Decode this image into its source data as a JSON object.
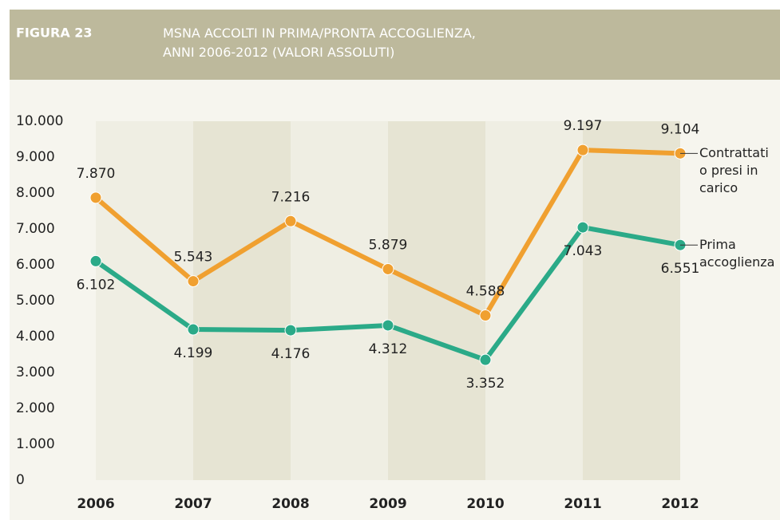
{
  "figure_label": "FIGURA 23",
  "chart_data": {
    "type": "line",
    "title": "MSNA ACCOLTI IN PRIMA/PRONTA ACCOGLIENZA, ANNI 2006-2012 (VALORI ASSOLUTI)",
    "categories": [
      "2006",
      "2007",
      "2008",
      "2009",
      "2010",
      "2011",
      "2012"
    ],
    "ylim": [
      0,
      10000
    ],
    "yticks": [
      0,
      {
        "value": 1000,
        "label": "1.000"
      },
      {
        "value": 2000,
        "label": "2.000"
      },
      {
        "value": 3000,
        "label": "3.000"
      },
      {
        "value": 4000,
        "label": "4.000"
      },
      {
        "value": 5000,
        "label": "5.000"
      },
      {
        "value": 6000,
        "label": "6.000"
      },
      {
        "value": 7000,
        "label": "7.000"
      },
      {
        "value": 8000,
        "label": "8.000"
      },
      {
        "value": 9000,
        "label": "9.000"
      },
      {
        "value": 10000,
        "label": "10.000"
      }
    ],
    "series": [
      {
        "name": "Contrattati o presi in carico",
        "color": "#f0a030",
        "values": [
          7870,
          5543,
          7216,
          5879,
          4588,
          9197,
          9104
        ],
        "value_labels": [
          "7.870",
          "5.543",
          "7.216",
          "5.879",
          "4.588",
          "9.197",
          "9.104"
        ]
      },
      {
        "name": "Prima accoglienza",
        "color": "#2baa88",
        "values": [
          6102,
          4199,
          4176,
          4312,
          3352,
          7043,
          6551
        ],
        "value_labels": [
          "6.102",
          "4.199",
          "4.176",
          "4.312",
          "3.352",
          "7.043",
          "6.551"
        ]
      }
    ]
  }
}
